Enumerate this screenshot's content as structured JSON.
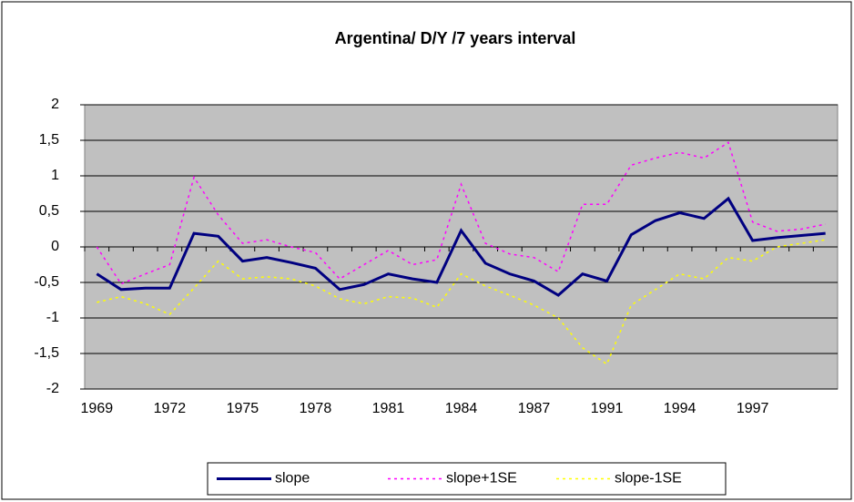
{
  "chart_data": {
    "type": "line",
    "title": "Argentina/ D/Y /7 years interval",
    "categories": [
      "1969",
      null,
      null,
      "1972",
      null,
      null,
      "1975",
      null,
      null,
      "1978",
      null,
      null,
      "1981",
      null,
      null,
      "1984",
      null,
      null,
      "1987",
      null,
      null,
      "1991",
      null,
      null,
      "1994",
      null,
      null,
      "1997",
      null,
      null,
      null
    ],
    "series": [
      {
        "name": "slope",
        "color": "#000080",
        "line_style": "solid",
        "values": [
          -0.38,
          -0.6,
          -0.58,
          -0.58,
          0.19,
          0.15,
          -0.2,
          -0.15,
          -0.22,
          -0.3,
          -0.6,
          -0.53,
          -0.38,
          -0.45,
          -0.5,
          0.23,
          -0.23,
          -0.38,
          -0.48,
          -0.68,
          -0.38,
          -0.48,
          0.17,
          0.37,
          0.48,
          0.4,
          0.68,
          0.09,
          0.13,
          0.16,
          0.19
        ]
      },
      {
        "name": "slope+1SE",
        "color": "#ff00ff",
        "line_style": "dashed",
        "values": [
          0.0,
          -0.52,
          -0.38,
          -0.25,
          0.98,
          0.45,
          0.05,
          0.1,
          0.0,
          -0.08,
          -0.45,
          -0.25,
          -0.05,
          -0.25,
          -0.18,
          0.88,
          0.05,
          -0.1,
          -0.15,
          -0.35,
          0.6,
          0.6,
          1.15,
          1.25,
          1.33,
          1.25,
          1.47,
          0.35,
          0.22,
          0.25,
          0.32
        ]
      },
      {
        "name": "slope-1SE",
        "color": "#ffff00",
        "line_style": "dashed",
        "values": [
          -0.78,
          -0.7,
          -0.8,
          -0.95,
          -0.58,
          -0.2,
          -0.45,
          -0.42,
          -0.45,
          -0.55,
          -0.73,
          -0.8,
          -0.7,
          -0.72,
          -0.85,
          -0.38,
          -0.55,
          -0.68,
          -0.82,
          -1.0,
          -1.42,
          -1.65,
          -0.82,
          -0.6,
          -0.38,
          -0.45,
          -0.15,
          -0.2,
          0.0,
          0.05,
          0.1
        ]
      }
    ],
    "ylim": [
      -2,
      2
    ],
    "yticks": [
      -2,
      {
        "value": -1.5,
        "label": "-1,5"
      },
      -1,
      {
        "value": -0.5,
        "label": "-0,5"
      },
      0,
      {
        "value": 0.5,
        "label": "0,5"
      },
      1,
      {
        "value": 1.5,
        "label": "1,5"
      },
      2
    ],
    "grid": true,
    "plot_background": "#c0c0c0",
    "legend": "bottom"
  }
}
